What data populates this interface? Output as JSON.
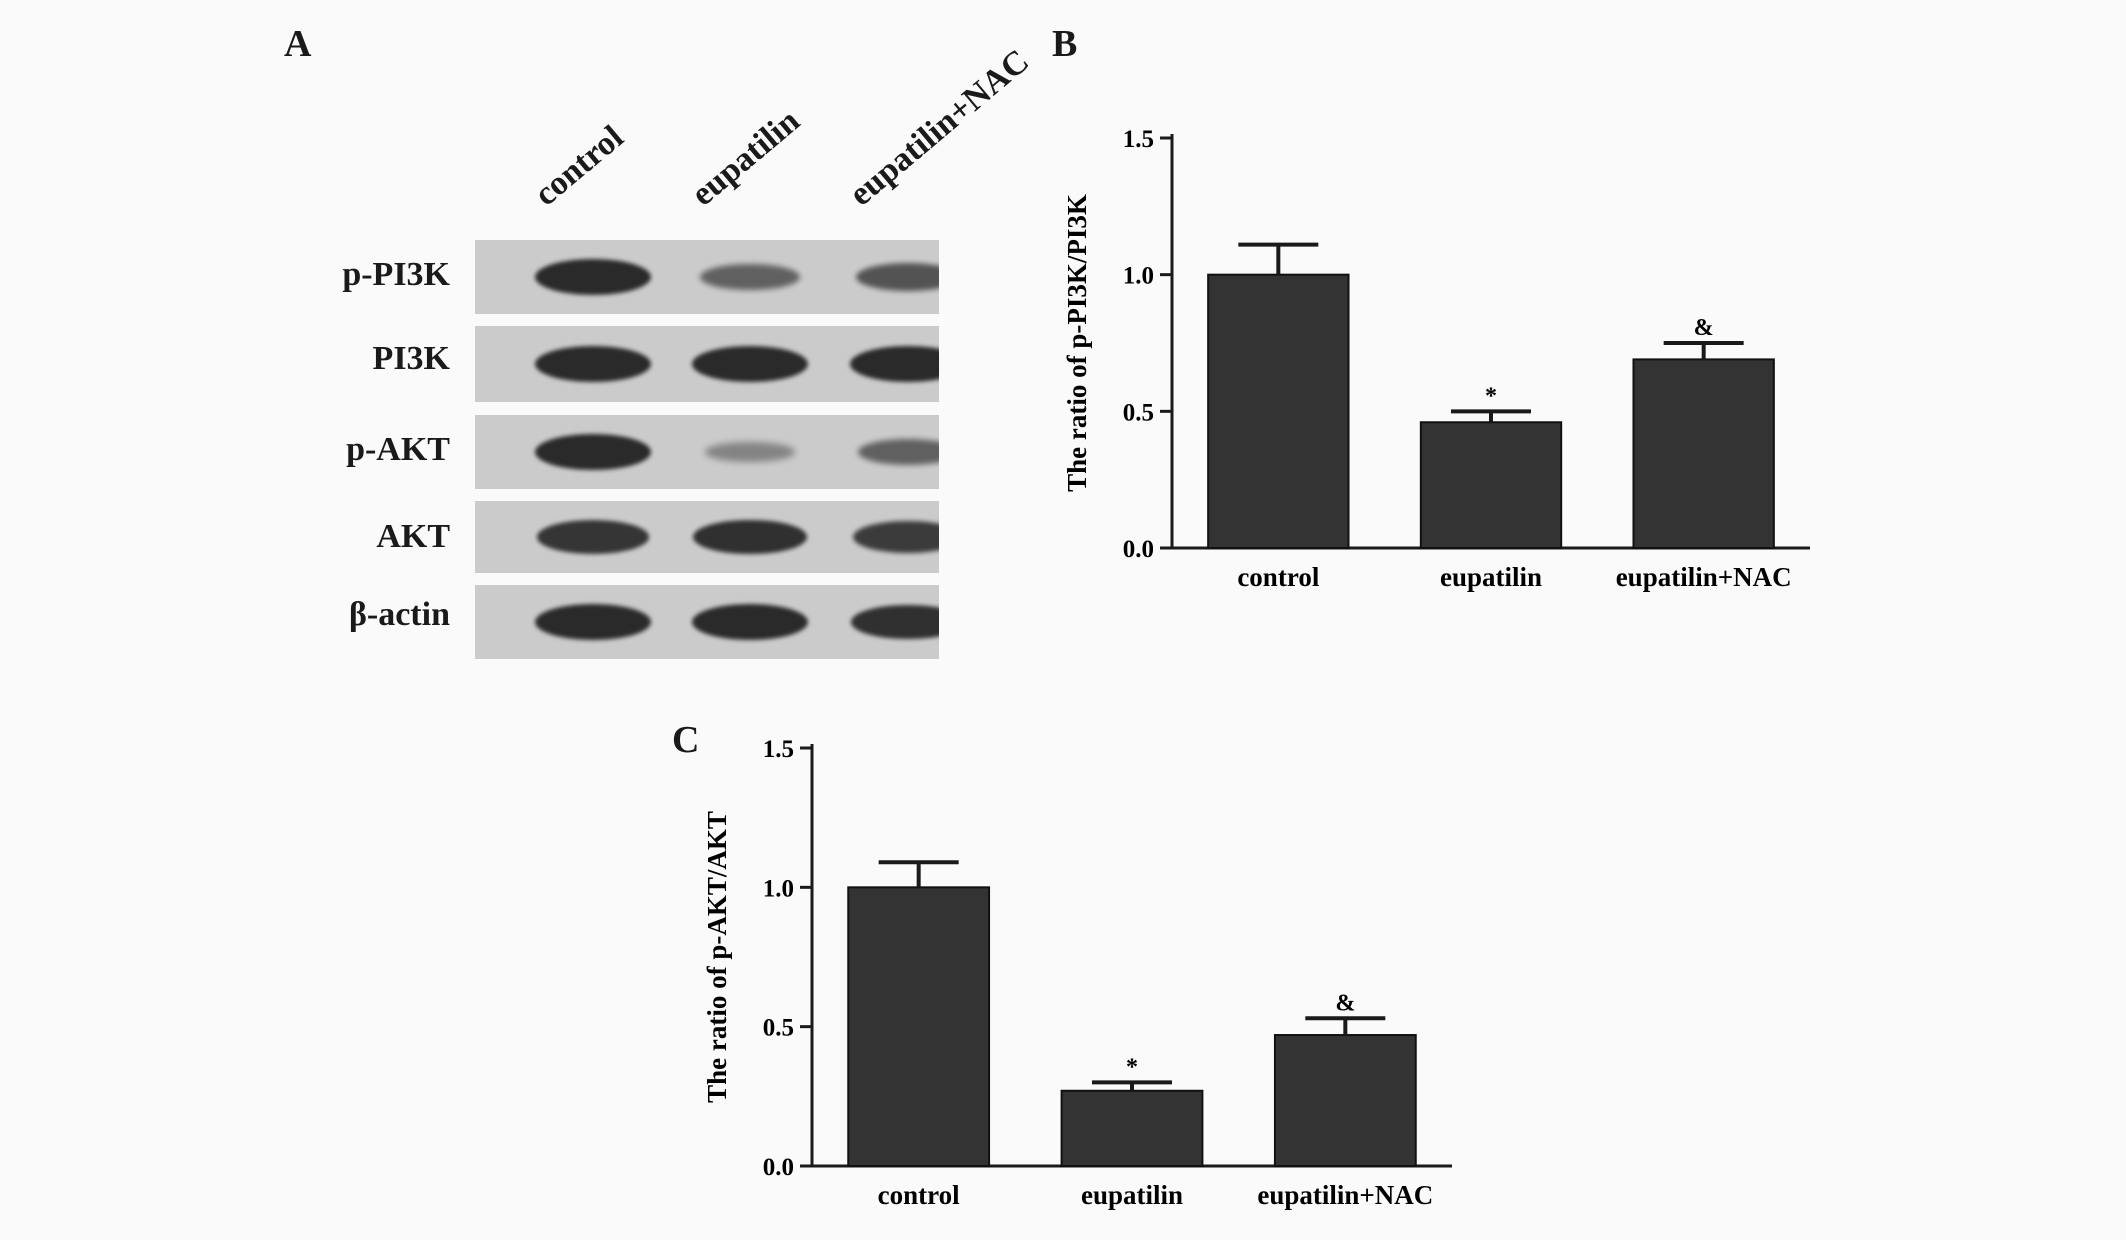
{
  "figure": {
    "panel_a": {
      "letter": "A",
      "lanes": [
        "control",
        "eupatilin",
        "eupatilin+NAC"
      ],
      "rows": [
        {
          "label": "p-PI3K",
          "band_intensity": [
            1.0,
            0.55,
            0.65
          ]
        },
        {
          "label": "PI3K",
          "band_intensity": [
            1.0,
            1.0,
            1.0
          ]
        },
        {
          "label": "p-AKT",
          "band_intensity": [
            1.0,
            0.25,
            0.55
          ]
        },
        {
          "label": "AKT",
          "band_intensity": [
            0.9,
            0.95,
            0.85
          ]
        },
        {
          "label": "β-actin",
          "band_intensity": [
            1.0,
            1.0,
            0.95
          ]
        }
      ],
      "band_color": "#2a2a2a",
      "membrane_color": "#cbcbcb"
    },
    "panel_b_letter": "B",
    "panel_c_letter": "C"
  },
  "chart_data": [
    {
      "type": "bar",
      "panel": "B",
      "categories": [
        "control",
        "eupatilin",
        "eupatilin+NAC"
      ],
      "values": [
        1.0,
        0.46,
        0.69
      ],
      "errors": [
        0.11,
        0.04,
        0.06
      ],
      "annotations": [
        "",
        "*",
        "&"
      ],
      "title": "",
      "xlabel": "",
      "ylabel": "The ratio of p-PI3K/PI3K",
      "ylim": [
        0,
        1.5
      ],
      "yticks": [
        "0.0",
        "0.5",
        "1.0",
        "1.5"
      ],
      "bar_color": "#333333",
      "grid": false
    },
    {
      "type": "bar",
      "panel": "C",
      "categories": [
        "control",
        "eupatilin",
        "eupatilin+NAC"
      ],
      "values": [
        1.0,
        0.27,
        0.47
      ],
      "errors": [
        0.09,
        0.03,
        0.06
      ],
      "annotations": [
        "",
        "*",
        "&"
      ],
      "title": "",
      "xlabel": "",
      "ylabel": "The ratio of p-AKT/AKT",
      "ylim": [
        0,
        1.5
      ],
      "yticks": [
        "0.0",
        "0.5",
        "1.0",
        "1.5"
      ],
      "bar_color": "#333333",
      "grid": false
    }
  ]
}
